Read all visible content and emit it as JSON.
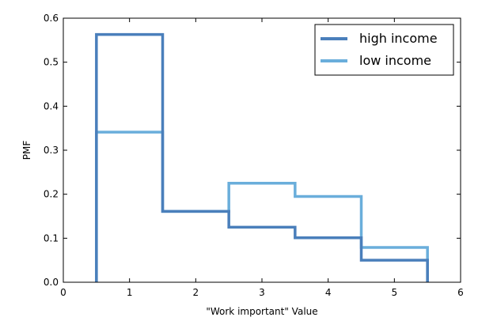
{
  "chart_data": {
    "type": "line",
    "step": true,
    "xlabel": "\"Work important\" Value",
    "ylabel": "PMF",
    "xlim": [
      0,
      6
    ],
    "ylim": [
      0,
      0.6
    ],
    "xticks": [
      "0",
      "1",
      "2",
      "3",
      "4",
      "5",
      "6"
    ],
    "yticks": [
      "0.0",
      "0.1",
      "0.2",
      "0.3",
      "0.4",
      "0.5",
      "0.6"
    ],
    "grid": false,
    "legend_position": "top-right",
    "categories": [
      1,
      2,
      3,
      4,
      5
    ],
    "series": [
      {
        "name": "high income",
        "color": "#4a7fbb",
        "values": [
          0.563,
          0.161,
          0.125,
          0.101,
          0.05
        ]
      },
      {
        "name": "low income",
        "color": "#6aaedb",
        "values": [
          0.341,
          0.161,
          0.225,
          0.195,
          0.079
        ]
      }
    ]
  }
}
